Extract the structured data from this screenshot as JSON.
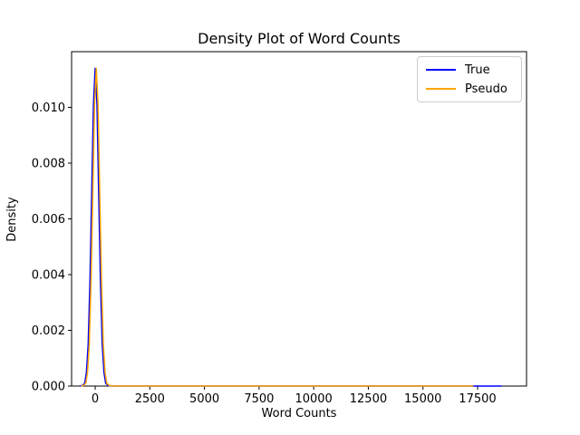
{
  "figure": {
    "background": "#ffffff"
  },
  "chart_data": {
    "type": "line",
    "title": "Density Plot of Word Counts",
    "xlabel": "Word Counts",
    "ylabel": "Density",
    "xlim": [
      -1080,
      19740
    ],
    "ylim": [
      0,
      0.012
    ],
    "grid": false,
    "xticks": {
      "values": [
        0,
        2500,
        5000,
        7500,
        10000,
        12500,
        15000,
        17500
      ],
      "labels": [
        "0",
        "2500",
        "5000",
        "7500",
        "10000",
        "12500",
        "15000",
        "17500"
      ]
    },
    "yticks": {
      "values": [
        0.0,
        0.002,
        0.004,
        0.006,
        0.008,
        0.01
      ],
      "labels": [
        "0.000",
        "0.002",
        "0.004",
        "0.006",
        "0.008",
        "0.010"
      ]
    },
    "legend": {
      "position": "upper right",
      "entries": [
        {
          "label": "True",
          "color": "#0000ff"
        },
        {
          "label": "Pseudo",
          "color": "#ffa500"
        }
      ]
    },
    "series": [
      {
        "name": "True",
        "color": "#0000ff",
        "points": [
          [
            -700,
            0
          ],
          [
            -600,
            2e-05
          ],
          [
            -480,
            0.0001
          ],
          [
            -400,
            0.0005
          ],
          [
            -320,
            0.0015
          ],
          [
            -240,
            0.0038
          ],
          [
            -160,
            0.0069
          ],
          [
            -80,
            0.0101
          ],
          [
            0,
            0.0114
          ],
          [
            80,
            0.0101
          ],
          [
            160,
            0.0069
          ],
          [
            240,
            0.0038
          ],
          [
            320,
            0.0015
          ],
          [
            400,
            0.0005
          ],
          [
            480,
            0.0001
          ],
          [
            600,
            2e-05
          ],
          [
            800,
            0
          ],
          [
            1500,
            0
          ],
          [
            5000,
            0
          ],
          [
            10000,
            0
          ],
          [
            15000,
            0
          ],
          [
            17000,
            0
          ],
          [
            18600,
            0
          ]
        ]
      },
      {
        "name": "Pseudo",
        "color": "#ffa500",
        "points": [
          [
            -650,
            0
          ],
          [
            -550,
            2e-05
          ],
          [
            -430,
            0.0001
          ],
          [
            -350,
            0.0005
          ],
          [
            -270,
            0.0015
          ],
          [
            -190,
            0.0038
          ],
          [
            -110,
            0.0069
          ],
          [
            -30,
            0.0101
          ],
          [
            50,
            0.0114
          ],
          [
            130,
            0.0101
          ],
          [
            210,
            0.0069
          ],
          [
            290,
            0.0038
          ],
          [
            370,
            0.0015
          ],
          [
            450,
            0.0005
          ],
          [
            530,
            0.0001
          ],
          [
            650,
            2e-05
          ],
          [
            850,
            0
          ],
          [
            1550,
            0
          ],
          [
            5000,
            0
          ],
          [
            10000,
            0
          ],
          [
            15000,
            0
          ],
          [
            17300,
            0
          ]
        ]
      }
    ]
  }
}
